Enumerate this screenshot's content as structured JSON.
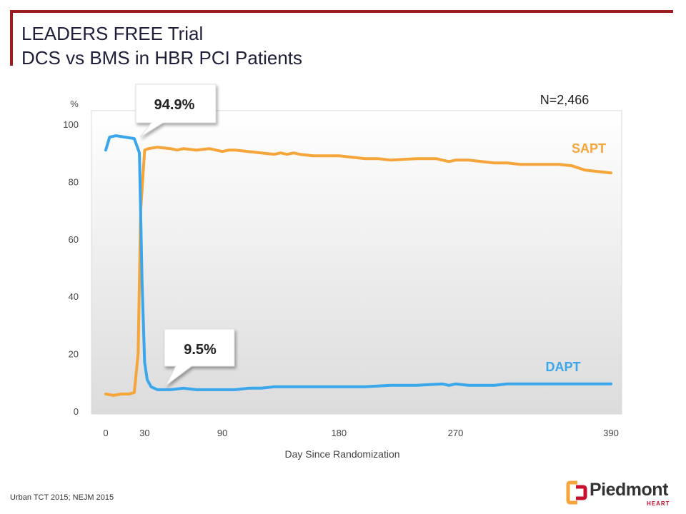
{
  "header": {
    "title_line1": "LEADERS FREE Trial",
    "title_line2": "DCS vs BMS in HBR PCI Patients"
  },
  "footnote": "Urban TCT 2015; NEJM 2015",
  "logo": {
    "name": "Piedmont",
    "subtitle": "HEART",
    "icon": "piedmont-bracket-icon"
  },
  "colors": {
    "brand": "#9b1d20",
    "sapt": "#f5a53a",
    "dapt": "#3aa6ec"
  },
  "chart_data": {
    "type": "line",
    "title": "",
    "xlabel": "Day Since Randomization",
    "ylabel": "%",
    "xlim": [
      0,
      390
    ],
    "ylim": [
      0,
      100
    ],
    "x_ticks": [
      0,
      30,
      90,
      180,
      270,
      390
    ],
    "y_ticks": [
      0,
      20,
      40,
      60,
      80,
      100
    ],
    "grid": false,
    "sample_size": "N=2,466",
    "series": [
      {
        "name": "SAPT",
        "x": [
          0,
          6,
          12,
          18,
          22,
          25,
          27,
          30,
          33,
          40,
          50,
          55,
          60,
          70,
          80,
          90,
          95,
          100,
          110,
          120,
          130,
          135,
          140,
          145,
          150,
          160,
          180,
          190,
          200,
          210,
          220,
          240,
          255,
          260,
          265,
          270,
          280,
          290,
          300,
          310,
          320,
          330,
          340,
          345,
          350,
          360,
          370,
          380,
          390
        ],
        "y": [
          6,
          5.5,
          6,
          6,
          6.5,
          20,
          70,
          91,
          91.5,
          92,
          91.5,
          91,
          91.5,
          91,
          91.5,
          90.5,
          91,
          91,
          90.5,
          90,
          89.5,
          90,
          89.5,
          90,
          89.5,
          89,
          89,
          88.5,
          88,
          88,
          87.5,
          88,
          88,
          87.5,
          87,
          87.5,
          87.5,
          87,
          86.5,
          86.5,
          86,
          86,
          86,
          86,
          86,
          85.5,
          84,
          83.5,
          83
        ]
      },
      {
        "name": "DAPT",
        "x": [
          0,
          3,
          8,
          15,
          22,
          26,
          28,
          30,
          32,
          35,
          40,
          50,
          60,
          70,
          80,
          100,
          110,
          120,
          130,
          150,
          180,
          200,
          220,
          240,
          260,
          265,
          270,
          280,
          290,
          300,
          310,
          330,
          350,
          370,
          390
        ],
        "y": [
          91,
          95.5,
          96,
          95.5,
          95,
          90,
          45,
          17,
          11,
          8.5,
          7.5,
          7.5,
          8,
          7.5,
          7.5,
          7.5,
          8,
          8,
          8.5,
          8.5,
          8.5,
          8.5,
          9,
          9,
          9.5,
          9,
          9.5,
          9,
          9,
          9,
          9.5,
          9.5,
          9.5,
          9.5,
          9.5
        ]
      }
    ],
    "annotations": [
      {
        "text": "94.9%",
        "x": 24,
        "y": 95
      },
      {
        "text": "9.5%",
        "x": 44,
        "y": 7.5
      }
    ]
  }
}
